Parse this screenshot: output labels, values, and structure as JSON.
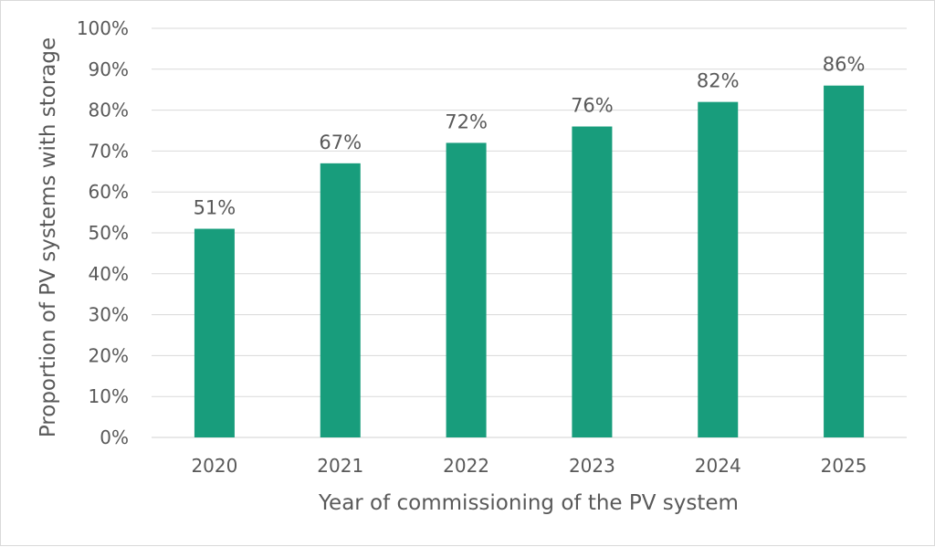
{
  "chart_data": {
    "type": "bar",
    "categories": [
      "2020",
      "2021",
      "2022",
      "2023",
      "2024",
      "2025"
    ],
    "values": [
      51,
      67,
      72,
      76,
      82,
      86
    ],
    "data_labels": [
      "51%",
      "67%",
      "72%",
      "76%",
      "82%",
      "86%"
    ],
    "title": "",
    "xlabel": "Year of commissioning of the PV system",
    "ylabel": "Proportion of PV systems with storage",
    "ylim": [
      0,
      100
    ],
    "ytick_values": [
      0,
      10,
      20,
      30,
      40,
      50,
      60,
      70,
      80,
      90,
      100
    ],
    "ytick_labels": [
      "0%",
      "10%",
      "20%",
      "30%",
      "40%",
      "50%",
      "60%",
      "70%",
      "80%",
      "90%",
      "100%"
    ],
    "grid": true,
    "legend": "none",
    "bar_color": "#189d7c"
  }
}
